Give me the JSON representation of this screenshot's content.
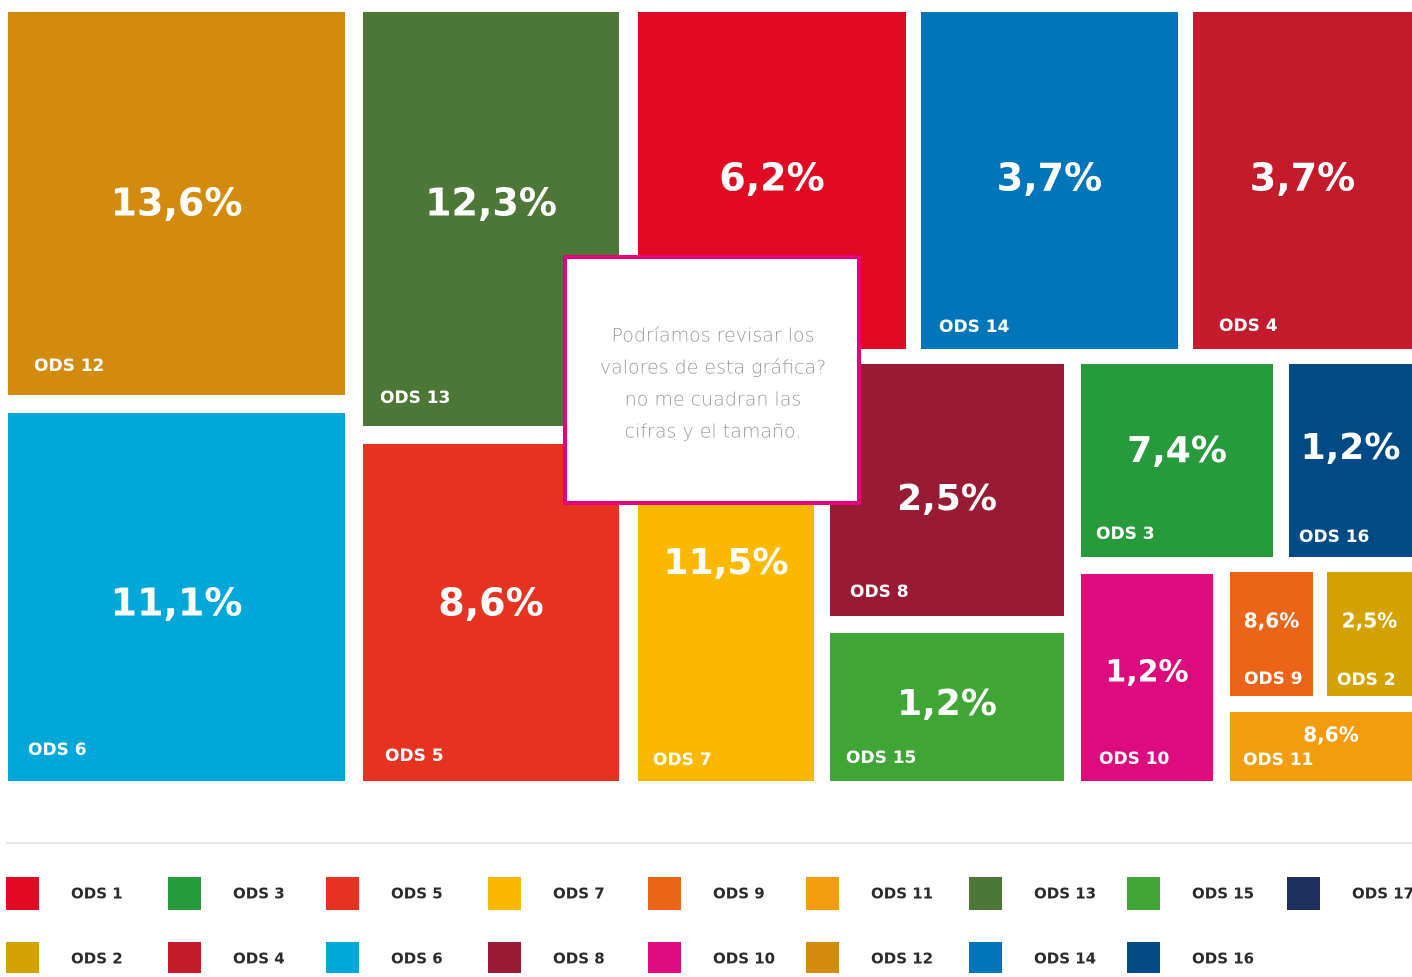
{
  "chart_data": {
    "type": "treemap",
    "tiles": [
      {
        "name": "ODS 12",
        "value": 13.6,
        "value_label": "13,6%",
        "color": "#d38b0e"
      },
      {
        "name": "ODS 13",
        "value": 12.3,
        "value_label": "12,3%",
        "color": "#4c7737"
      },
      {
        "name": null,
        "value": 6.2,
        "value_label": "6,2%",
        "color": "#e20a23"
      },
      {
        "name": "ODS 14",
        "value": 3.7,
        "value_label": "3,7%",
        "color": "#0075ba"
      },
      {
        "name": "ODS 4",
        "value": 3.7,
        "value_label": "3,7%",
        "color": "#c31a2c"
      },
      {
        "name": "ODS 6",
        "value": 11.1,
        "value_label": "11,1%",
        "color": "#00a7d9"
      },
      {
        "name": "ODS 5",
        "value": 8.6,
        "value_label": "8,6%",
        "color": "#e5331f"
      },
      {
        "name": "ODS 7",
        "value": 11.5,
        "value_label": "11,5%",
        "color": "#fbb800"
      },
      {
        "name": "ODS 8",
        "value": 2.5,
        "value_label": "2,5%",
        "color": "#981b33"
      },
      {
        "name": "ODS 15",
        "value": 1.2,
        "value_label": "1,2%",
        "color": "#3fa535"
      },
      {
        "name": "ODS 3",
        "value": 7.4,
        "value_label": "7,4%",
        "color": "#279a3c"
      },
      {
        "name": "ODS 16",
        "value": 1.2,
        "value_label": "1,2%",
        "color": "#004b85"
      },
      {
        "name": "ODS 10",
        "value": 1.2,
        "value_label": "1,2%",
        "color": "#dd0b7d"
      },
      {
        "name": "ODS 9",
        "value": 8.6,
        "value_label": "8,6%",
        "color": "#ec6417"
      },
      {
        "name": "ODS 2",
        "value": 2.5,
        "value_label": "2,5%",
        "color": "#d4a200"
      },
      {
        "name": "ODS 11",
        "value": 8.6,
        "value_label": "8,6%",
        "color": "#f29c0e"
      }
    ],
    "annotation": [
      "Podríamos revisar los",
      "valores de esta gráfica?",
      "no me cuadran las",
      "cifras y el tamaño."
    ],
    "legend": [
      {
        "name": "ODS 1",
        "color": "#e20a23"
      },
      {
        "name": "ODS 3",
        "color": "#279a3c"
      },
      {
        "name": "ODS 5",
        "color": "#e5331f"
      },
      {
        "name": "ODS 7",
        "color": "#fbb800"
      },
      {
        "name": "ODS 9",
        "color": "#ec6417"
      },
      {
        "name": "ODS 11",
        "color": "#f29c0e"
      },
      {
        "name": "ODS 13",
        "color": "#4c7737"
      },
      {
        "name": "ODS 15",
        "color": "#3fa535"
      },
      {
        "name": "ODS 17",
        "color": "#1d2f5f"
      },
      {
        "name": "ODS 2",
        "color": "#d4a200"
      },
      {
        "name": "ODS 4",
        "color": "#c31a2c"
      },
      {
        "name": "ODS 6",
        "color": "#00a7d9"
      },
      {
        "name": "ODS 8",
        "color": "#981b33"
      },
      {
        "name": "ODS 10",
        "color": "#dd0b7d"
      },
      {
        "name": "ODS 12",
        "color": "#d38b0e"
      },
      {
        "name": "ODS 14",
        "color": "#0075ba"
      },
      {
        "name": "ODS 16",
        "color": "#004b85"
      }
    ]
  }
}
